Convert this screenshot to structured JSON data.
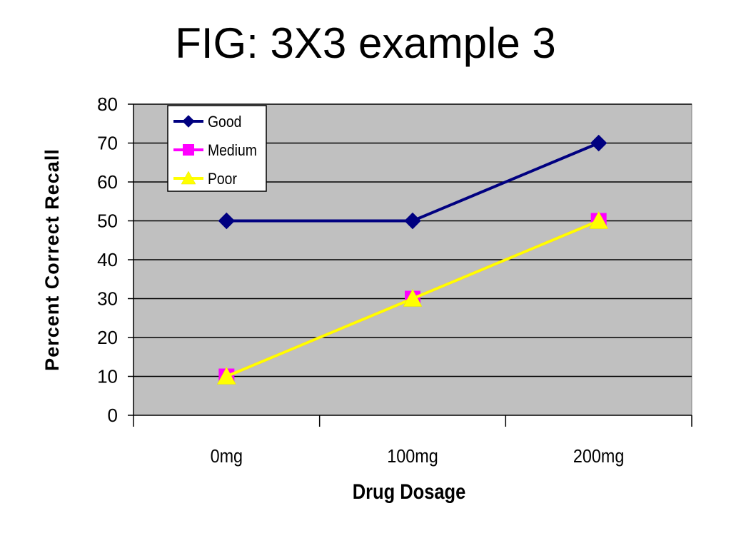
{
  "chart_data": {
    "type": "line",
    "title": "FIG: 3X3 example 3",
    "xlabel": "Drug Dosage",
    "ylabel": "Percent Correct Recall",
    "categories": [
      "0mg",
      "100mg",
      "200mg"
    ],
    "ylim": [
      0,
      80
    ],
    "yticks": [
      0,
      10,
      20,
      30,
      40,
      50,
      60,
      70,
      80
    ],
    "grid": true,
    "legend_position": "top-left",
    "plot_background": "#c0c0c0",
    "series": [
      {
        "name": "Good",
        "values": [
          50,
          50,
          70
        ],
        "color": "#000080",
        "marker": "diamond"
      },
      {
        "name": "Medium",
        "values": [
          10,
          30,
          50
        ],
        "color": "#ff00ff",
        "marker": "square"
      },
      {
        "name": "Poor",
        "values": [
          10,
          30,
          50
        ],
        "color": "#ffff00",
        "marker": "triangle"
      }
    ]
  }
}
